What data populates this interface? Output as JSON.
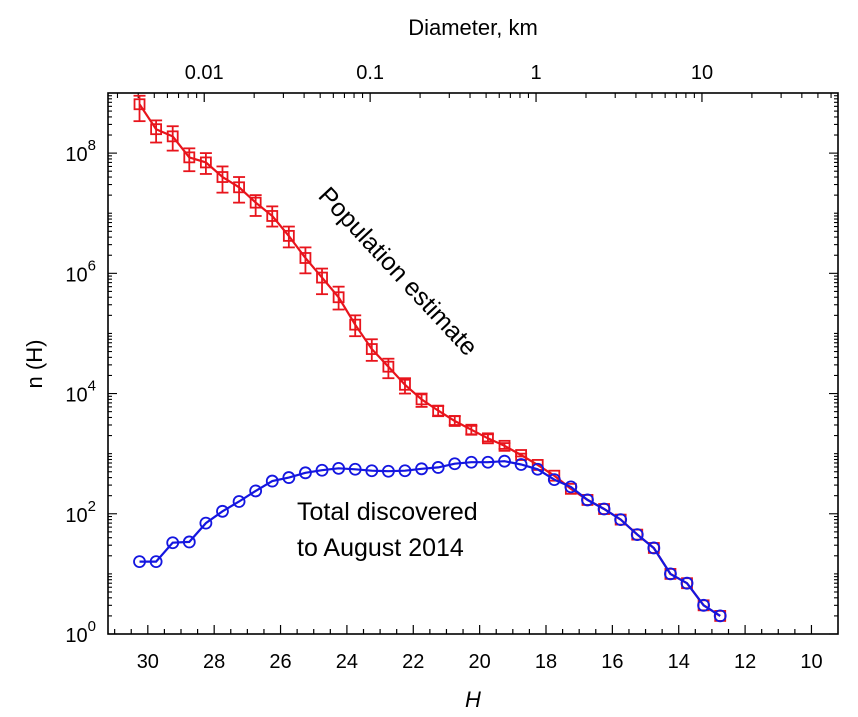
{
  "chart_data": {
    "type": "scatter",
    "xlabel": "H",
    "ylabel": "n (H)",
    "top_axis_label": "Diameter, km",
    "x_reversed": true,
    "y_scale": "log",
    "xlim": [
      31.2,
      9.2
    ],
    "ylim": [
      1,
      1000000000
    ],
    "x_ticks": [
      30,
      28,
      26,
      24,
      22,
      20,
      18,
      16,
      14,
      12,
      10
    ],
    "y_ticks": [
      {
        "value": 1,
        "base": "10",
        "exp": "0"
      },
      {
        "value": 100,
        "base": "10",
        "exp": "2"
      },
      {
        "value": 10000,
        "base": "10",
        "exp": "4"
      },
      {
        "value": 1000000,
        "base": "10",
        "exp": "6"
      },
      {
        "value": 100000000,
        "base": "10",
        "exp": "8"
      }
    ],
    "top_ticks": [
      {
        "label": "0.01",
        "H": 28.3
      },
      {
        "label": "0.1",
        "H": 23.3
      },
      {
        "label": "1",
        "H": 18.3
      },
      {
        "label": "10",
        "H": 13.3
      }
    ],
    "series": [
      {
        "color": "#e8141c",
        "marker": "square",
        "points": [
          {
            "x": 30.25,
            "y": 650000000,
            "lo": 340000000,
            "hi": 900000000
          },
          {
            "x": 29.75,
            "y": 250000000,
            "lo": 150000000,
            "hi": 350000000
          },
          {
            "x": 29.25,
            "y": 190000000,
            "lo": 110000000,
            "hi": 280000000
          },
          {
            "x": 28.75,
            "y": 85000000,
            "lo": 50000000,
            "hi": 120000000
          },
          {
            "x": 28.25,
            "y": 70000000,
            "lo": 45000000,
            "hi": 100000000
          },
          {
            "x": 27.75,
            "y": 40000000,
            "lo": 22000000,
            "hi": 60000000
          },
          {
            "x": 27.25,
            "y": 27000000,
            "lo": 15000000,
            "hi": 40000000
          },
          {
            "x": 26.75,
            "y": 15000000,
            "lo": 9000000,
            "hi": 20000000
          },
          {
            "x": 26.25,
            "y": 9000000,
            "lo": 6000000,
            "hi": 13000000
          },
          {
            "x": 25.75,
            "y": 4200000,
            "lo": 2700000,
            "hi": 6000000
          },
          {
            "x": 25.25,
            "y": 1800000,
            "lo": 1000000,
            "hi": 2700000
          },
          {
            "x": 24.75,
            "y": 850000,
            "lo": 450000,
            "hi": 1200000
          },
          {
            "x": 24.25,
            "y": 400000,
            "lo": 250000,
            "hi": 600000
          },
          {
            "x": 23.75,
            "y": 140000,
            "lo": 90000,
            "hi": 200000
          },
          {
            "x": 23.25,
            "y": 55000,
            "lo": 35000,
            "hi": 80000
          },
          {
            "x": 22.75,
            "y": 28000,
            "lo": 18000,
            "hi": 38000
          },
          {
            "x": 22.25,
            "y": 14000,
            "lo": 10000,
            "hi": 18000
          },
          {
            "x": 21.75,
            "y": 8000,
            "lo": 6000,
            "hi": 10000
          },
          {
            "x": 21.25,
            "y": 5200,
            "lo": 4200,
            "hi": 6200
          },
          {
            "x": 20.75,
            "y": 3500,
            "lo": 3000,
            "hi": 4200
          },
          {
            "x": 20.25,
            "y": 2500,
            "lo": 2100,
            "hi": 2900
          },
          {
            "x": 19.75,
            "y": 1800,
            "lo": 1600,
            "hi": 2100
          },
          {
            "x": 19.25,
            "y": 1350,
            "lo": 1200,
            "hi": 1500
          },
          {
            "x": 18.75,
            "y": 950,
            "lo": 900,
            "hi": 1000
          },
          {
            "x": 18.25,
            "y": 650
          },
          {
            "x": 17.75,
            "y": 430
          },
          {
            "x": 17.25,
            "y": 260
          },
          {
            "x": 16.75,
            "y": 170
          },
          {
            "x": 16.25,
            "y": 120
          },
          {
            "x": 15.75,
            "y": 80
          },
          {
            "x": 15.25,
            "y": 45
          },
          {
            "x": 14.75,
            "y": 27
          },
          {
            "x": 14.25,
            "y": 10
          },
          {
            "x": 13.75,
            "y": 7
          },
          {
            "x": 13.25,
            "y": 3
          },
          {
            "x": 12.75,
            "y": 2
          }
        ]
      },
      {
        "color": "#1416e0",
        "marker": "circle",
        "points": [
          {
            "x": 30.25,
            "y": 16
          },
          {
            "x": 29.75,
            "y": 16
          },
          {
            "x": 29.25,
            "y": 33
          },
          {
            "x": 28.75,
            "y": 34
          },
          {
            "x": 28.25,
            "y": 70
          },
          {
            "x": 27.75,
            "y": 110
          },
          {
            "x": 27.25,
            "y": 160
          },
          {
            "x": 26.75,
            "y": 240
          },
          {
            "x": 26.25,
            "y": 350
          },
          {
            "x": 25.75,
            "y": 400
          },
          {
            "x": 25.25,
            "y": 480
          },
          {
            "x": 24.75,
            "y": 530
          },
          {
            "x": 24.25,
            "y": 570
          },
          {
            "x": 23.75,
            "y": 550
          },
          {
            "x": 23.25,
            "y": 520
          },
          {
            "x": 22.75,
            "y": 510
          },
          {
            "x": 22.25,
            "y": 520
          },
          {
            "x": 21.75,
            "y": 560
          },
          {
            "x": 21.25,
            "y": 590
          },
          {
            "x": 20.75,
            "y": 680
          },
          {
            "x": 20.25,
            "y": 720
          },
          {
            "x": 19.75,
            "y": 720
          },
          {
            "x": 19.25,
            "y": 750
          },
          {
            "x": 18.75,
            "y": 660
          },
          {
            "x": 18.25,
            "y": 550
          },
          {
            "x": 17.75,
            "y": 370
          },
          {
            "x": 17.25,
            "y": 280
          },
          {
            "x": 16.75,
            "y": 170
          },
          {
            "x": 16.25,
            "y": 120
          },
          {
            "x": 15.75,
            "y": 80
          },
          {
            "x": 15.25,
            "y": 45
          },
          {
            "x": 14.75,
            "y": 27
          },
          {
            "x": 14.25,
            "y": 10
          },
          {
            "x": 13.75,
            "y": 7
          },
          {
            "x": 13.25,
            "y": 3
          },
          {
            "x": 12.75,
            "y": 2
          }
        ]
      }
    ],
    "annotations": [
      {
        "text": "Population estimate"
      },
      {
        "text": "Total discovered"
      },
      {
        "text": "to August 2014"
      }
    ]
  }
}
